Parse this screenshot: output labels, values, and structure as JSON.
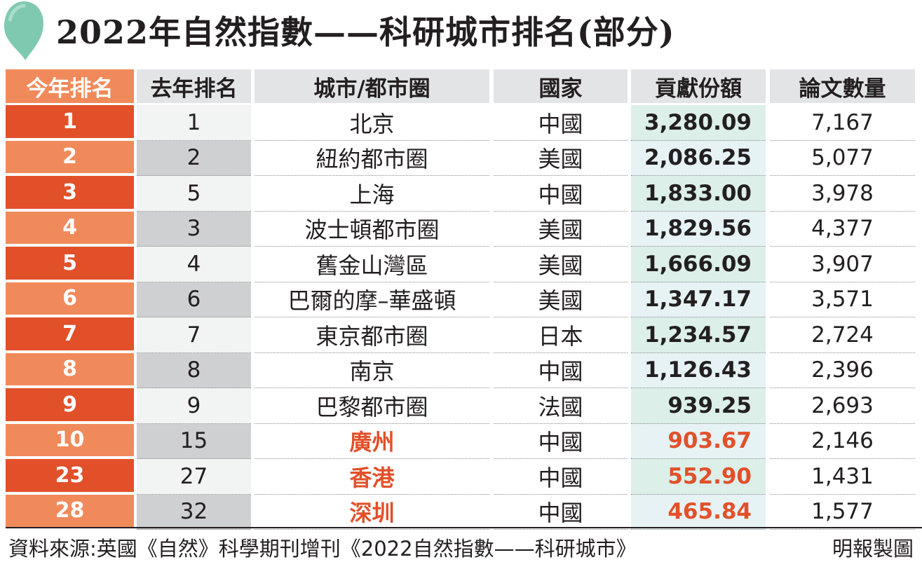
{
  "colors": {
    "rank_odd": "#e2502a",
    "rank_even": "#f18a5b",
    "highlight": "#e2502a",
    "header_bg": "#e3e4e5",
    "share_bg": "#dcefe9",
    "pin": "#7fc9b1"
  },
  "icons": {
    "pin": "map-pin-icon"
  },
  "chart_data": {
    "type": "table",
    "title": "2022年自然指數——科研城市排名(部分)",
    "columns": [
      "今年排名",
      "去年排名",
      "城市/都市圈",
      "國家",
      "貢獻份額",
      "論文數量"
    ],
    "rows": [
      {
        "rank": "1",
        "last_rank": "1",
        "city": "北京",
        "country": "中國",
        "share": "3,280.09",
        "papers": "7,167",
        "highlight": false
      },
      {
        "rank": "2",
        "last_rank": "2",
        "city": "紐約都市圈",
        "country": "美國",
        "share": "2,086.25",
        "papers": "5,077",
        "highlight": false
      },
      {
        "rank": "3",
        "last_rank": "5",
        "city": "上海",
        "country": "中國",
        "share": "1,833.00",
        "papers": "3,978",
        "highlight": false
      },
      {
        "rank": "4",
        "last_rank": "3",
        "city": "波士頓都市圈",
        "country": "美國",
        "share": "1,829.56",
        "papers": "4,377",
        "highlight": false
      },
      {
        "rank": "5",
        "last_rank": "4",
        "city": "舊金山灣區",
        "country": "美國",
        "share": "1,666.09",
        "papers": "3,907",
        "highlight": false
      },
      {
        "rank": "6",
        "last_rank": "6",
        "city": "巴爾的摩–華盛頓",
        "country": "美國",
        "share": "1,347.17",
        "papers": "3,571",
        "highlight": false
      },
      {
        "rank": "7",
        "last_rank": "7",
        "city": "東京都市圈",
        "country": "日本",
        "share": "1,234.57",
        "papers": "2,724",
        "highlight": false
      },
      {
        "rank": "8",
        "last_rank": "8",
        "city": "南京",
        "country": "中國",
        "share": "1,126.43",
        "papers": "2,396",
        "highlight": false
      },
      {
        "rank": "9",
        "last_rank": "9",
        "city": "巴黎都市圈",
        "country": "法國",
        "share": "939.25",
        "papers": "2,693",
        "highlight": false
      },
      {
        "rank": "10",
        "last_rank": "15",
        "city": "廣州",
        "country": "中國",
        "share": "903.67",
        "papers": "2,146",
        "highlight": true
      },
      {
        "rank": "23",
        "last_rank": "27",
        "city": "香港",
        "country": "中國",
        "share": "552.90",
        "papers": "1,431",
        "highlight": true
      },
      {
        "rank": "28",
        "last_rank": "32",
        "city": "深圳",
        "country": "中國",
        "share": "465.84",
        "papers": "1,577",
        "highlight": true
      }
    ]
  },
  "footer": {
    "source": "資料來源:英國《自然》科學期刊增刊《2022自然指數——科研城市》",
    "credit": "明報製圖"
  }
}
